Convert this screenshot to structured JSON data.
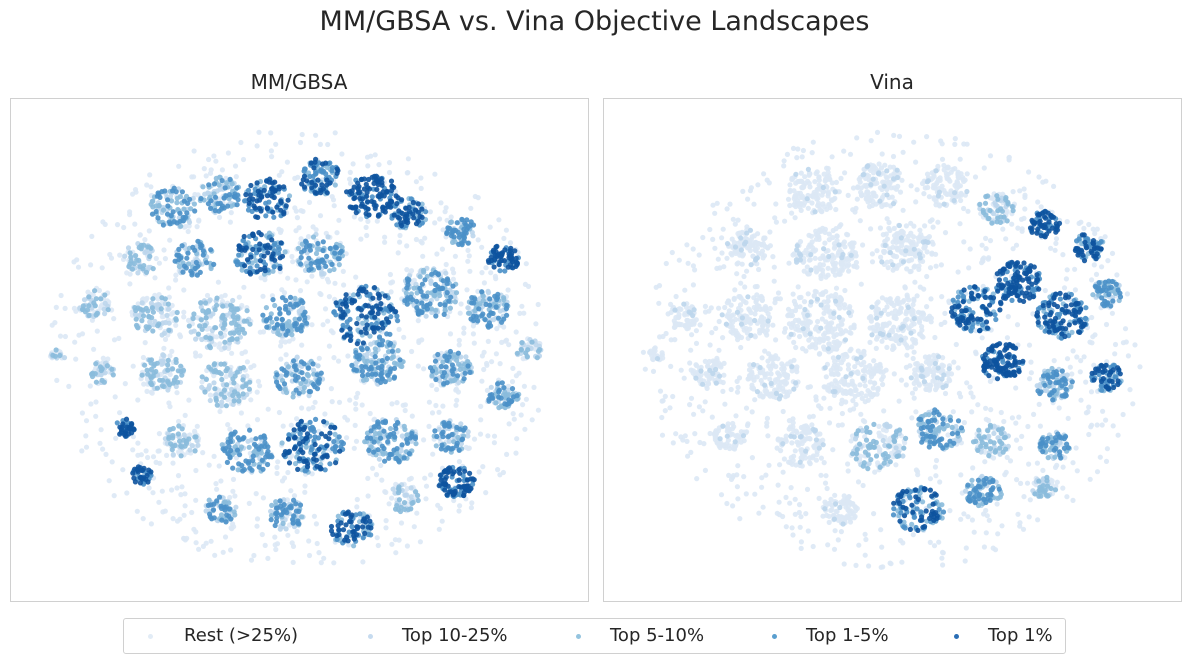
{
  "figure": {
    "suptitle": "MM/GBSA vs. Vina Objective Landscapes"
  },
  "legend": {
    "items": [
      {
        "label": "Rest (>25%)",
        "color": "#e2ecf6"
      },
      {
        "label": "Top 10-25%",
        "color": "#c6dbef"
      },
      {
        "label": "Top 5-10%",
        "color": "#94c4df"
      },
      {
        "label": "Top 1-5%",
        "color": "#5a9fcf"
      },
      {
        "label": "Top 1%",
        "color": "#2a6eb5"
      }
    ]
  },
  "chart_data": [
    {
      "type": "scatter",
      "title": "MM/GBSA",
      "xlabel": "",
      "ylabel": "",
      "grid": false,
      "axes_visible": false,
      "xlim": [
        -1,
        1
      ],
      "ylim": [
        -1,
        1
      ],
      "categories": [
        "Rest (>25%)",
        "Top 10-25%",
        "Top 5-10%",
        "Top 1-5%",
        "Top 1%"
      ],
      "palette": [
        "#dce8f5",
        "#bcd6ec",
        "#89bbdc",
        "#4a90c8",
        "#0d539e"
      ],
      "description": "t-SNE embedding of ligands colored by MM/GBSA score percentile; high-scoring points spread across most clusters",
      "clusters": [
        {
          "x": -0.48,
          "y": 0.62,
          "r": 0.09,
          "n": 60,
          "level": 3
        },
        {
          "x": -0.3,
          "y": 0.68,
          "r": 0.08,
          "n": 55,
          "level": 3
        },
        {
          "x": -0.12,
          "y": 0.66,
          "r": 0.09,
          "n": 60,
          "level": 4
        },
        {
          "x": 0.08,
          "y": 0.76,
          "r": 0.08,
          "n": 55,
          "level": 4
        },
        {
          "x": 0.28,
          "y": 0.68,
          "r": 0.1,
          "n": 70,
          "level": 5
        },
        {
          "x": 0.42,
          "y": 0.6,
          "r": 0.07,
          "n": 45,
          "level": 4
        },
        {
          "x": -0.6,
          "y": 0.4,
          "r": 0.07,
          "n": 40,
          "level": 2
        },
        {
          "x": -0.4,
          "y": 0.4,
          "r": 0.08,
          "n": 50,
          "level": 3
        },
        {
          "x": -0.15,
          "y": 0.42,
          "r": 0.1,
          "n": 70,
          "level": 4
        },
        {
          "x": 0.08,
          "y": 0.42,
          "r": 0.09,
          "n": 60,
          "level": 3
        },
        {
          "x": 0.62,
          "y": 0.52,
          "r": 0.06,
          "n": 40,
          "level": 3
        },
        {
          "x": 0.78,
          "y": 0.4,
          "r": 0.06,
          "n": 40,
          "level": 5
        },
        {
          "x": -0.78,
          "y": 0.2,
          "r": 0.06,
          "n": 35,
          "level": 2
        },
        {
          "x": -0.55,
          "y": 0.15,
          "r": 0.09,
          "n": 60,
          "level": 2
        },
        {
          "x": -0.3,
          "y": 0.12,
          "r": 0.12,
          "n": 90,
          "level": 2
        },
        {
          "x": -0.05,
          "y": 0.15,
          "r": 0.09,
          "n": 60,
          "level": 3
        },
        {
          "x": 0.25,
          "y": 0.15,
          "r": 0.13,
          "n": 100,
          "level": 4
        },
        {
          "x": 0.5,
          "y": 0.25,
          "r": 0.11,
          "n": 90,
          "level": 3
        },
        {
          "x": 0.72,
          "y": 0.18,
          "r": 0.08,
          "n": 60,
          "level": 3
        },
        {
          "x": 0.88,
          "y": 0.0,
          "r": 0.05,
          "n": 25,
          "level": 2
        },
        {
          "x": -0.92,
          "y": -0.02,
          "r": 0.03,
          "n": 10,
          "level": 2
        },
        {
          "x": -0.75,
          "y": -0.1,
          "r": 0.05,
          "n": 30,
          "level": 2
        },
        {
          "x": -0.52,
          "y": -0.1,
          "r": 0.08,
          "n": 55,
          "level": 2
        },
        {
          "x": -0.28,
          "y": -0.15,
          "r": 0.1,
          "n": 70,
          "level": 2
        },
        {
          "x": 0.0,
          "y": -0.12,
          "r": 0.09,
          "n": 60,
          "level": 3
        },
        {
          "x": 0.3,
          "y": -0.05,
          "r": 0.1,
          "n": 80,
          "level": 3
        },
        {
          "x": 0.58,
          "y": -0.08,
          "r": 0.08,
          "n": 60,
          "level": 3
        },
        {
          "x": 0.78,
          "y": -0.2,
          "r": 0.06,
          "n": 40,
          "level": 3
        },
        {
          "x": -0.66,
          "y": -0.34,
          "r": 0.04,
          "n": 22,
          "level": 5
        },
        {
          "x": -0.45,
          "y": -0.4,
          "r": 0.07,
          "n": 45,
          "level": 2
        },
        {
          "x": -0.2,
          "y": -0.45,
          "r": 0.1,
          "n": 70,
          "level": 3
        },
        {
          "x": 0.05,
          "y": -0.42,
          "r": 0.12,
          "n": 90,
          "level": 4
        },
        {
          "x": 0.35,
          "y": -0.4,
          "r": 0.1,
          "n": 80,
          "level": 3
        },
        {
          "x": 0.58,
          "y": -0.38,
          "r": 0.07,
          "n": 45,
          "level": 3
        },
        {
          "x": -0.6,
          "y": -0.55,
          "r": 0.04,
          "n": 22,
          "level": 5
        },
        {
          "x": 0.6,
          "y": -0.58,
          "r": 0.07,
          "n": 55,
          "level": 5
        },
        {
          "x": -0.3,
          "y": -0.7,
          "r": 0.06,
          "n": 35,
          "level": 3
        },
        {
          "x": -0.05,
          "y": -0.72,
          "r": 0.07,
          "n": 45,
          "level": 3
        },
        {
          "x": 0.2,
          "y": -0.78,
          "r": 0.08,
          "n": 50,
          "level": 4
        },
        {
          "x": 0.4,
          "y": -0.65,
          "r": 0.06,
          "n": 35,
          "level": 2
        }
      ]
    },
    {
      "type": "scatter",
      "title": "Vina",
      "xlabel": "",
      "ylabel": "",
      "grid": false,
      "axes_visible": false,
      "xlim": [
        -1,
        1
      ],
      "ylim": [
        -1,
        1
      ],
      "categories": [
        "Rest (>25%)",
        "Top 10-25%",
        "Top 5-10%",
        "Top 1-5%",
        "Top 1%"
      ],
      "palette": [
        "#dce8f5",
        "#bcd6ec",
        "#89bbdc",
        "#4a90c8",
        "#0d539e"
      ],
      "description": "Same t-SNE embedding colored by Vina score percentile; high-scoring points concentrated on the right side",
      "clusters": [
        {
          "x": -0.3,
          "y": 0.7,
          "r": 0.1,
          "n": 70,
          "level": 1
        },
        {
          "x": -0.05,
          "y": 0.72,
          "r": 0.1,
          "n": 70,
          "level": 1
        },
        {
          "x": 0.2,
          "y": 0.72,
          "r": 0.09,
          "n": 60,
          "level": 1
        },
        {
          "x": 0.4,
          "y": 0.62,
          "r": 0.07,
          "n": 45,
          "level": 2
        },
        {
          "x": -0.55,
          "y": 0.45,
          "r": 0.08,
          "n": 55,
          "level": 1
        },
        {
          "x": -0.25,
          "y": 0.42,
          "r": 0.12,
          "n": 90,
          "level": 1
        },
        {
          "x": 0.05,
          "y": 0.45,
          "r": 0.11,
          "n": 80,
          "level": 1
        },
        {
          "x": 0.58,
          "y": 0.55,
          "r": 0.06,
          "n": 40,
          "level": 5
        },
        {
          "x": 0.75,
          "y": 0.45,
          "r": 0.06,
          "n": 40,
          "level": 4
        },
        {
          "x": -0.8,
          "y": 0.15,
          "r": 0.06,
          "n": 35,
          "level": 1
        },
        {
          "x": -0.55,
          "y": 0.15,
          "r": 0.1,
          "n": 70,
          "level": 1
        },
        {
          "x": -0.28,
          "y": 0.12,
          "r": 0.14,
          "n": 110,
          "level": 1
        },
        {
          "x": 0.02,
          "y": 0.12,
          "r": 0.12,
          "n": 90,
          "level": 1
        },
        {
          "x": 0.32,
          "y": 0.18,
          "r": 0.1,
          "n": 80,
          "level": 4
        },
        {
          "x": 0.48,
          "y": 0.3,
          "r": 0.09,
          "n": 80,
          "level": 5
        },
        {
          "x": 0.65,
          "y": 0.15,
          "r": 0.1,
          "n": 90,
          "level": 4
        },
        {
          "x": 0.82,
          "y": 0.25,
          "r": 0.06,
          "n": 40,
          "level": 3
        },
        {
          "x": -0.9,
          "y": -0.02,
          "r": 0.03,
          "n": 10,
          "level": 1
        },
        {
          "x": -0.7,
          "y": -0.1,
          "r": 0.06,
          "n": 40,
          "level": 1
        },
        {
          "x": -0.45,
          "y": -0.12,
          "r": 0.1,
          "n": 70,
          "level": 1
        },
        {
          "x": -0.15,
          "y": -0.12,
          "r": 0.12,
          "n": 90,
          "level": 1
        },
        {
          "x": 0.15,
          "y": -0.1,
          "r": 0.08,
          "n": 60,
          "level": 1
        },
        {
          "x": 0.42,
          "y": -0.05,
          "r": 0.08,
          "n": 70,
          "level": 5
        },
        {
          "x": 0.62,
          "y": -0.15,
          "r": 0.07,
          "n": 55,
          "level": 3
        },
        {
          "x": 0.82,
          "y": -0.12,
          "r": 0.06,
          "n": 45,
          "level": 4
        },
        {
          "x": -0.62,
          "y": -0.38,
          "r": 0.06,
          "n": 35,
          "level": 1
        },
        {
          "x": -0.35,
          "y": -0.42,
          "r": 0.09,
          "n": 60,
          "level": 1
        },
        {
          "x": -0.05,
          "y": -0.42,
          "r": 0.11,
          "n": 80,
          "level": 2
        },
        {
          "x": 0.18,
          "y": -0.35,
          "r": 0.09,
          "n": 70,
          "level": 3
        },
        {
          "x": 0.38,
          "y": -0.4,
          "r": 0.07,
          "n": 45,
          "level": 2
        },
        {
          "x": 0.62,
          "y": -0.42,
          "r": 0.06,
          "n": 40,
          "level": 3
        },
        {
          "x": -0.2,
          "y": -0.7,
          "r": 0.07,
          "n": 45,
          "level": 1
        },
        {
          "x": 0.1,
          "y": -0.7,
          "r": 0.1,
          "n": 70,
          "level": 4
        },
        {
          "x": 0.35,
          "y": -0.62,
          "r": 0.07,
          "n": 50,
          "level": 3
        },
        {
          "x": 0.58,
          "y": -0.6,
          "r": 0.05,
          "n": 30,
          "level": 2
        }
      ]
    }
  ]
}
